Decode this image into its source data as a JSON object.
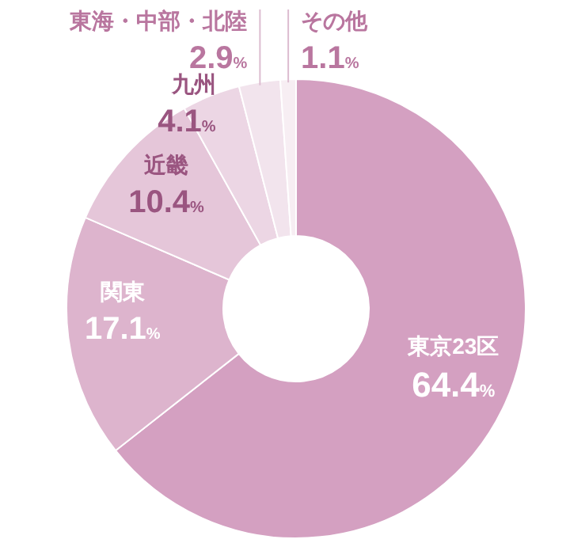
{
  "chart_data": {
    "type": "donut",
    "categories": [
      "東京23区",
      "関東",
      "近畿",
      "九州",
      "東海・中部・北陸",
      "その他"
    ],
    "values": [
      64.4,
      17.1,
      10.4,
      4.1,
      2.9,
      1.1
    ],
    "colors": [
      "#d4a0c1",
      "#ddb4cd",
      "#e5c6d9",
      "#ecd6e4",
      "#f2e4ed",
      "#f7eef3"
    ],
    "value_labels": [
      "64.4%",
      "17.1%",
      "10.4%",
      "4.1%",
      "2.9%",
      "1.1%"
    ]
  }
}
